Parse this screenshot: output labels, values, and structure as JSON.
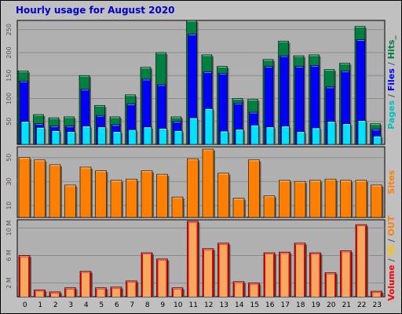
{
  "title": "Hourly usage for August 2020",
  "chart_data": [
    {
      "type": "bar",
      "panel": "pages-files-hits",
      "categories": [
        "0",
        "1",
        "2",
        "3",
        "4",
        "5",
        "6",
        "7",
        "8",
        "9",
        "10",
        "11",
        "12",
        "13",
        "14",
        "15",
        "16",
        "17",
        "18",
        "19",
        "20",
        "21",
        "22",
        "23"
      ],
      "y_ticks": [
        "50",
        "100",
        "150",
        "200",
        "250"
      ],
      "ylim": [
        0,
        270
      ],
      "series": [
        {
          "name": "Hits",
          "color": "#008040",
          "values": [
            160,
            65,
            58,
            60,
            150,
            85,
            60,
            108,
            168,
            200,
            60,
            270,
            195,
            170,
            100,
            98,
            185,
            225,
            193,
            195,
            163,
            177,
            257,
            45
          ]
        },
        {
          "name": "Files",
          "color": "#0000ff",
          "values": [
            138,
            45,
            40,
            40,
            120,
            63,
            43,
            88,
            142,
            130,
            50,
            240,
            158,
            155,
            90,
            70,
            170,
            193,
            170,
            172,
            125,
            160,
            228,
            33
          ]
        },
        {
          "name": "Pages",
          "color": "#00e0ff",
          "values": [
            50,
            37,
            30,
            28,
            40,
            38,
            28,
            32,
            38,
            35,
            30,
            58,
            78,
            29,
            33,
            42,
            38,
            40,
            28,
            36,
            50,
            45,
            52,
            18
          ]
        }
      ],
      "side_label": [
        {
          "text": "Pages",
          "color": "#00c0c0"
        },
        {
          "text": " / ",
          "color": "#555555"
        },
        {
          "text": "Files",
          "color": "#0000ff"
        },
        {
          "text": " / ",
          "color": "#555555"
        },
        {
          "text": "Hits",
          "color": "#008040"
        },
        {
          "text": "_",
          "color": "#555555"
        }
      ]
    },
    {
      "type": "bar",
      "panel": "sites",
      "categories": [
        "0",
        "1",
        "2",
        "3",
        "4",
        "5",
        "6",
        "7",
        "8",
        "9",
        "10",
        "11",
        "12",
        "13",
        "14",
        "15",
        "16",
        "17",
        "18",
        "19",
        "20",
        "21",
        "22",
        "23"
      ],
      "y_ticks": [
        "10",
        "30",
        "50"
      ],
      "ylim": [
        0,
        59
      ],
      "series": [
        {
          "name": "Sites",
          "color": "#ff8000",
          "values": [
            50,
            48,
            44,
            27,
            42,
            39,
            31,
            32,
            39,
            36,
            17,
            49,
            57,
            37,
            16,
            48,
            18,
            31,
            30,
            31,
            32,
            31,
            31,
            27
          ]
        }
      ],
      "side_label": [
        {
          "text": "Sites",
          "color": "#ff8000"
        }
      ]
    },
    {
      "type": "bar",
      "panel": "volume",
      "categories": [
        "0",
        "1",
        "2",
        "3",
        "4",
        "5",
        "6",
        "7",
        "8",
        "9",
        "10",
        "11",
        "12",
        "13",
        "14",
        "15",
        "16",
        "17",
        "18",
        "19",
        "20",
        "21",
        "22",
        "23"
      ],
      "y_ticks": [
        "2 M",
        "6 M",
        "10 M"
      ],
      "ylim": [
        0,
        11.2
      ],
      "series": [
        {
          "name": "Volume",
          "color": "#ff0000",
          "values": [
            6.0,
            1.0,
            0.7,
            1.3,
            3.7,
            1.3,
            1.4,
            2.3,
            6.4,
            5.5,
            1.3,
            11.0,
            7.0,
            7.8,
            2.2,
            2.0,
            6.4,
            6.5,
            7.8,
            6.4,
            3.5,
            6.7,
            10.5,
            0.8
          ]
        }
      ],
      "side_label": [
        {
          "text": "Volume",
          "color": "#ff0000"
        },
        {
          "text": " / ",
          "color": "#555555"
        },
        {
          "text": "IN",
          "color": "#ffc000"
        },
        {
          "text": " / ",
          "color": "#555555"
        },
        {
          "text": "OUT",
          "color": "#ff8000"
        }
      ]
    }
  ]
}
